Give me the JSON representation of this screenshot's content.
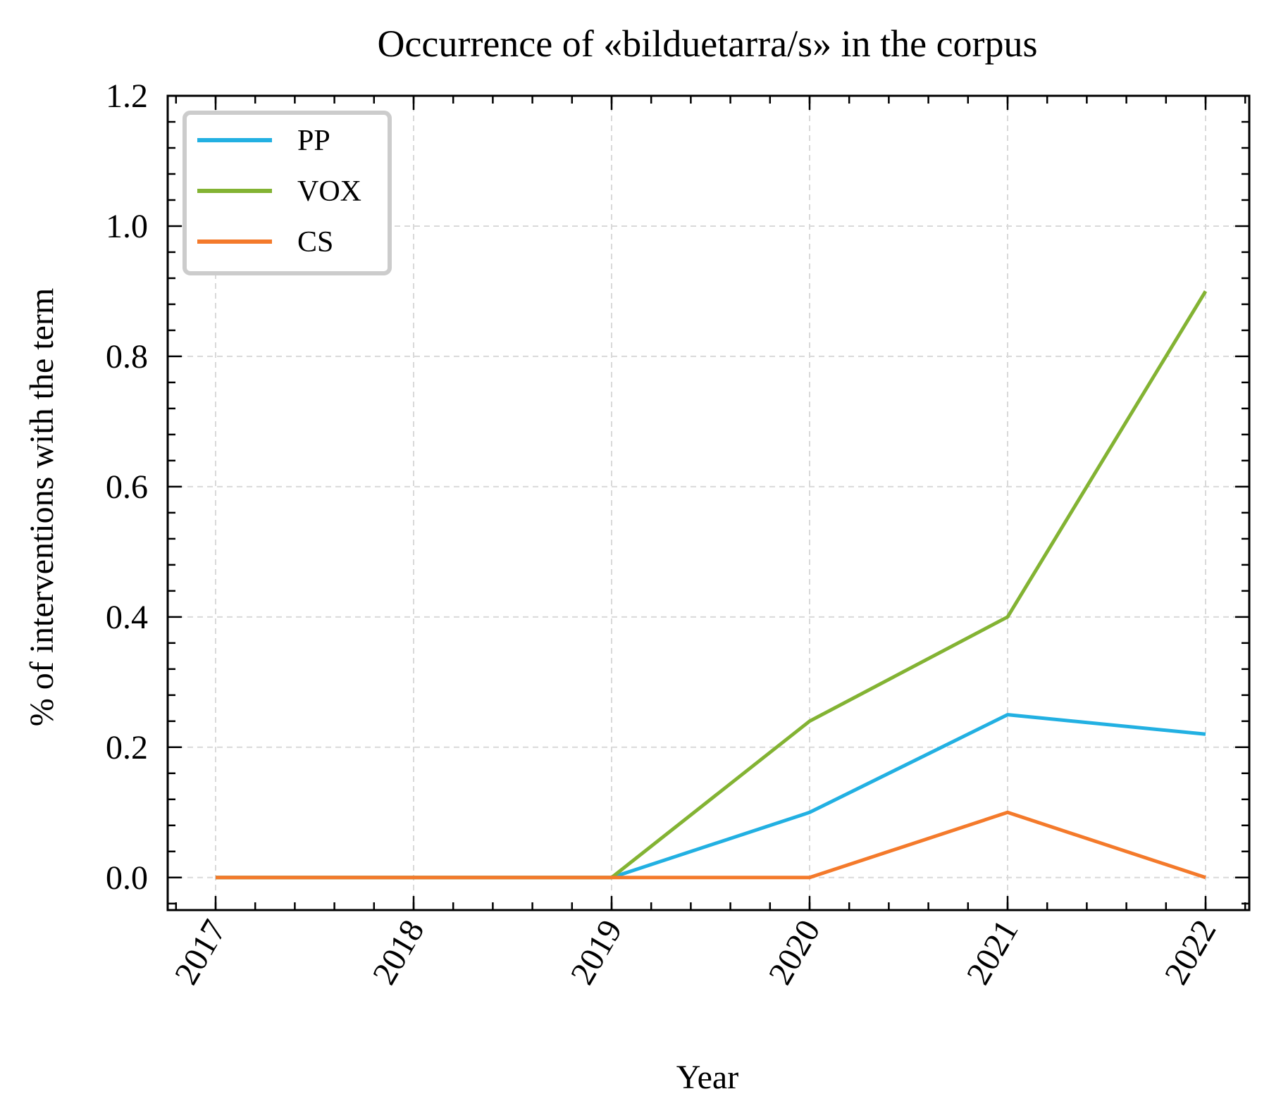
{
  "chart_data": {
    "type": "line",
    "title": "Occurrence of «bilduetarra/s» in the corpus",
    "xlabel": "Year",
    "ylabel": "% of interventions with the term",
    "categories": [
      "2017",
      "2018",
      "2019",
      "2020",
      "2021",
      "2022"
    ],
    "x": [
      2017,
      2018,
      2019,
      2020,
      2021,
      2022
    ],
    "ylim": [
      -0.05,
      1.2
    ],
    "yticks": [
      "0.0",
      "0.2",
      "0.4",
      "0.6",
      "0.8",
      "1.0",
      "1.2"
    ],
    "grid": true,
    "legend_position": "top-left",
    "series": [
      {
        "name": "PP",
        "color": "#22b0e2",
        "values": [
          0,
          0,
          0,
          0.1,
          0.25,
          0.22
        ]
      },
      {
        "name": "VOX",
        "color": "#83b333",
        "values": [
          0,
          0,
          0,
          0.24,
          0.4,
          0.9
        ]
      },
      {
        "name": "CS",
        "color": "#f47a2b",
        "values": [
          0,
          0,
          0,
          0,
          0.1,
          0
        ]
      }
    ]
  }
}
